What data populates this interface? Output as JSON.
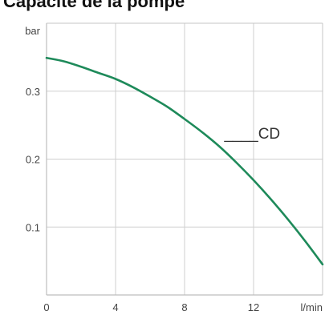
{
  "chart_data": {
    "type": "line",
    "title": "Capacité de la pompe",
    "xlabel": "l/min",
    "ylabel": "bar",
    "xlim": [
      0,
      16
    ],
    "ylim": [
      0,
      0.4
    ],
    "x_ticks": [
      0,
      4,
      8,
      12
    ],
    "x_tick_labels": [
      "0",
      "4",
      "8",
      "12"
    ],
    "y_ticks": [
      0.1,
      0.2,
      0.3
    ],
    "y_tick_labels": [
      "0.1",
      "0.2",
      "0.3"
    ],
    "grid": true,
    "series": [
      {
        "name": "____CD",
        "color": "#1e8a5a",
        "x": [
          0,
          1,
          2,
          3,
          4,
          5,
          6,
          7,
          8,
          9,
          10,
          11,
          12,
          13,
          14,
          15,
          16
        ],
        "y": [
          0.349,
          0.344,
          0.336,
          0.327,
          0.318,
          0.306,
          0.292,
          0.277,
          0.259,
          0.24,
          0.219,
          0.195,
          0.169,
          0.141,
          0.111,
          0.079,
          0.045
        ]
      }
    ]
  }
}
